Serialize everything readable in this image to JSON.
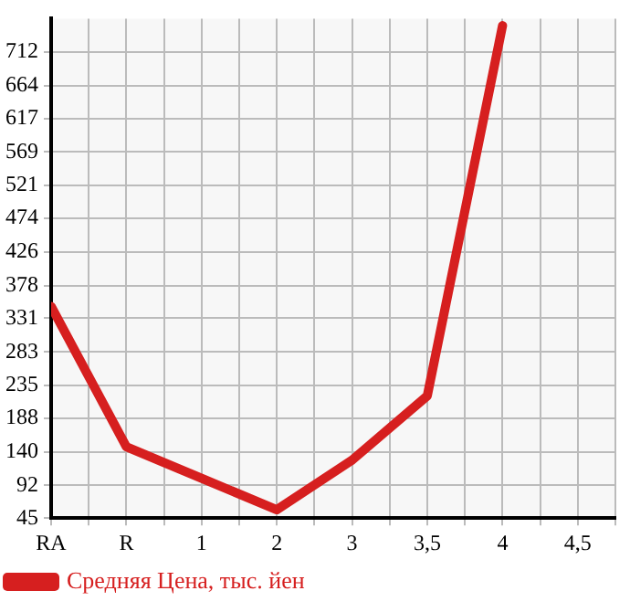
{
  "chart_data": {
    "type": "line",
    "categories": [
      "RA",
      "R",
      "1",
      "2",
      "3",
      "3,5",
      "4",
      "4,5"
    ],
    "series": [
      {
        "name": "Средняя Цена, тыс. йен",
        "color": "#d61f1f",
        "values": [
          348,
          147,
          102,
          57,
          128,
          220,
          750,
          null
        ]
      }
    ],
    "ylim": [
      45,
      760
    ],
    "yticks": [
      45,
      92,
      140,
      188,
      235,
      283,
      331,
      378,
      426,
      474,
      521,
      569,
      617,
      664,
      712
    ],
    "grid": true,
    "legend": "bottom left",
    "marker": "none",
    "line_style": "solid"
  }
}
